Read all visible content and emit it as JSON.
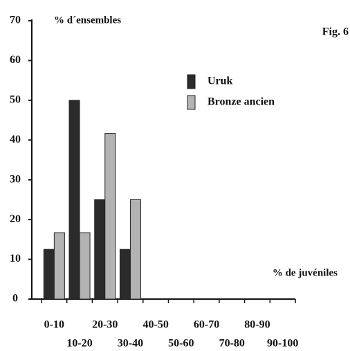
{
  "chart_data": {
    "type": "bar",
    "title": "Fig. 6",
    "ylabel": "% d´ensembles",
    "xlabel": "% de juvéniles",
    "categories": [
      "0-10",
      "10-20",
      "20-30",
      "30-40",
      "40-50",
      "50-60",
      "60-70",
      "70-80",
      "80-90",
      "90-100"
    ],
    "series": [
      {
        "name": "Uruk",
        "color": "#2b2b2b",
        "values": [
          12.5,
          50,
          25,
          12.5,
          0,
          0,
          0,
          0,
          0,
          0
        ]
      },
      {
        "name": "Bronze ancien",
        "color": "#b3b3b3",
        "values": [
          16.7,
          16.7,
          41.7,
          25,
          0,
          0,
          0,
          0,
          0,
          0
        ]
      }
    ],
    "ylim": [
      0,
      70
    ],
    "yticks": [
      0,
      10,
      20,
      30,
      40,
      50,
      60,
      70
    ],
    "legend": "upper-center",
    "grid": false
  }
}
